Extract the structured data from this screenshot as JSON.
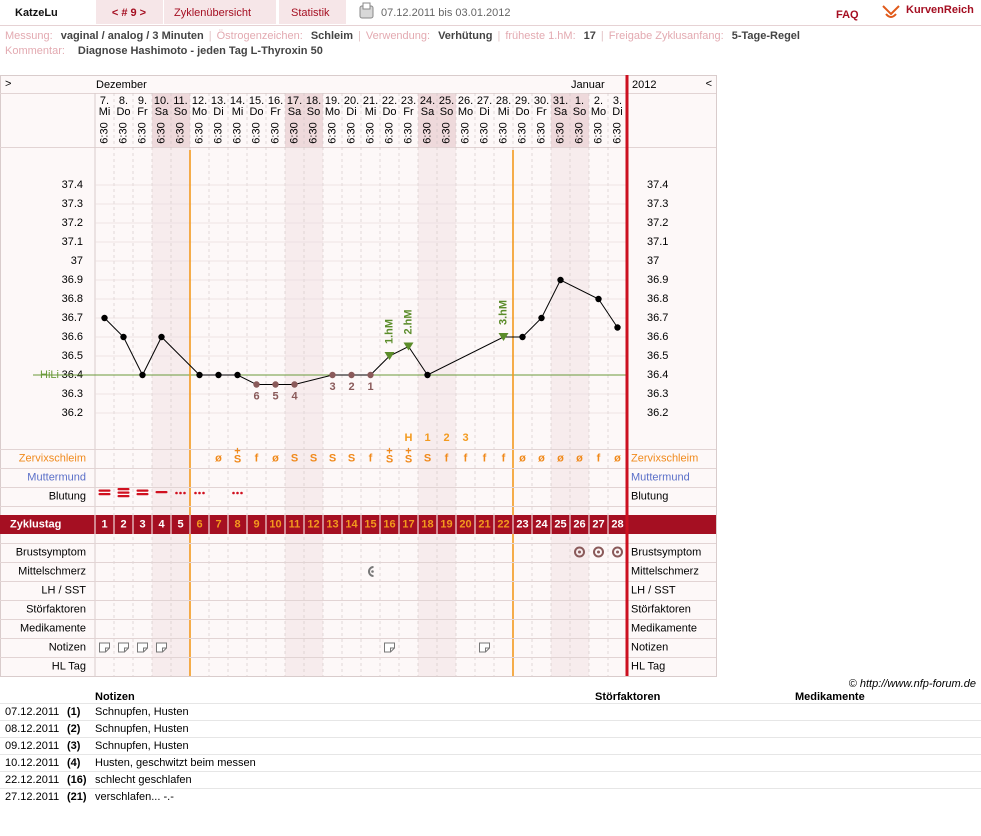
{
  "header": {
    "user": "KatzeLu",
    "cycle_nav": "< # 9 >",
    "tabs": [
      "Zyklenübersicht",
      "Statistik"
    ],
    "date_range": "07.12.2011 bis 03.01.2012",
    "faq": "FAQ",
    "logo": "KurvenReich"
  },
  "info": {
    "separator": "|",
    "fields": [
      {
        "label": "Messung:",
        "value": "vaginal / analog / 3 Minuten"
      },
      {
        "label": "Östrogenzeichen:",
        "value": "Schleim"
      },
      {
        "label": "Verwendung:",
        "value": "Verhütung"
      },
      {
        "label": "früheste 1.hM:",
        "value": "17"
      },
      {
        "label": "Freigabe Zyklusanfang:",
        "value": "5-Tage-Regel"
      }
    ],
    "comment": {
      "label": "Kommentar:",
      "value": "Diagnose Hashimoto - jeden Tag L-Thyroxin 50"
    }
  },
  "chart_data": {
    "type": "line",
    "nav_left": ">",
    "nav_right": "<",
    "months": [
      "Dezember",
      "Januar"
    ],
    "year": "2012",
    "dates": [
      "7.",
      "8.",
      "9.",
      "10.",
      "11.",
      "12.",
      "13.",
      "14.",
      "15.",
      "16.",
      "17.",
      "18.",
      "19.",
      "20.",
      "21.",
      "22.",
      "23.",
      "24.",
      "25.",
      "26.",
      "27.",
      "28.",
      "29.",
      "30.",
      "31.",
      "1.",
      "2.",
      "3."
    ],
    "weekdays": [
      "Mi",
      "Do",
      "Fr",
      "Sa",
      "So",
      "Mo",
      "Di",
      "Mi",
      "Do",
      "Fr",
      "Sa",
      "So",
      "Mo",
      "Di",
      "Mi",
      "Do",
      "Fr",
      "Sa",
      "So",
      "Mo",
      "Di",
      "Mi",
      "Do",
      "Fr",
      "Sa",
      "So",
      "Mo",
      "Di"
    ],
    "times": [
      "6:30",
      "6:30",
      "6:30",
      "6:30",
      "6:30",
      "6:30",
      "6:30",
      "6:30",
      "6:30",
      "6:30",
      "6:30",
      "6:30",
      "6:30",
      "6:30",
      "6:30",
      "6:30",
      "6:30",
      "6:30",
      "6:30",
      "6:30",
      "6:30",
      "6:30",
      "6:30",
      "6:30",
      "6:30",
      "6:30",
      "6:30",
      "6:30"
    ],
    "x": [
      1,
      2,
      3,
      4,
      6,
      7,
      8,
      9,
      10,
      11,
      13,
      14,
      15,
      16,
      17,
      18,
      22,
      23,
      24,
      25,
      27,
      28
    ],
    "values": [
      36.7,
      36.6,
      36.4,
      36.6,
      36.4,
      36.4,
      36.4,
      36.35,
      36.35,
      36.35,
      36.4,
      36.4,
      36.4,
      36.5,
      36.55,
      36.4,
      36.6,
      36.6,
      36.7,
      36.9,
      36.8,
      36.65
    ],
    "point_labels": [
      null,
      null,
      null,
      null,
      null,
      null,
      null,
      "6",
      "5",
      "4",
      "3",
      "2",
      "1",
      "1.hM",
      "2.hM",
      null,
      "3.hM",
      null,
      null,
      null,
      null,
      null
    ],
    "point_colors": [
      "#000000",
      "#000000",
      "#000000",
      "#000000",
      "#000000",
      "#000000",
      "#000000",
      "#8a5a5a",
      "#8a5a5a",
      "#8a5a5a",
      "#8a5a5a",
      "#8a5a5a",
      "#8a5a5a",
      "#5b8c2a",
      "#5b8c2a",
      "#000000",
      "#5b8c2a",
      "#000000",
      "#000000",
      "#000000",
      "#000000",
      "#000000"
    ],
    "point_markers": [
      "circle",
      "circle",
      "circle",
      "circle",
      "circle",
      "circle",
      "circle",
      "circle",
      "circle",
      "circle",
      "circle",
      "circle",
      "circle",
      "triangle",
      "triangle",
      "circle",
      "triangle",
      "circle",
      "circle",
      "circle",
      "circle",
      "circle"
    ],
    "xlim": [
      0.5,
      28.5
    ],
    "ylim": [
      36.0,
      37.6
    ],
    "yticks": [
      37.4,
      37.3,
      37.2,
      37.1,
      37,
      36.9,
      36.8,
      36.7,
      36.6,
      36.5,
      36.4,
      36.3,
      36.2
    ],
    "grid": true,
    "line_color": "#000000",
    "hili": {
      "label": "HiLi",
      "value": 36.4,
      "color": "#6a9a3a"
    },
    "peak": {
      "labels": [
        "H",
        "1",
        "2",
        "3"
      ],
      "start_day": 17
    },
    "cycle_marker_days": [
      5,
      22
    ],
    "rows_top": [
      {
        "label": "Zervixschleim",
        "color": "#f08a1c",
        "values": [
          null,
          null,
          null,
          null,
          null,
          null,
          "ø",
          {
            "text": "S",
            "mark": "+"
          },
          "f",
          "ø",
          "S",
          "S",
          "S",
          "S",
          "f",
          {
            "text": "S",
            "mark": "+"
          },
          {
            "text": "S",
            "mark": "+"
          },
          "S",
          "f",
          "f",
          "f",
          "f",
          "ø",
          "ø",
          "ø",
          "ø",
          "f",
          "ø"
        ]
      },
      {
        "label": "Muttermund",
        "color": "#5a6fc8"
      },
      {
        "label": "Blutung",
        "color": "#000000"
      }
    ],
    "cycle_label": "Zyklustag",
    "cycle_days": [
      1,
      2,
      3,
      4,
      5,
      6,
      7,
      8,
      9,
      10,
      11,
      12,
      13,
      14,
      15,
      16,
      17,
      18,
      19,
      20,
      21,
      22,
      23,
      24,
      25,
      26,
      27,
      28
    ],
    "rows_bottom": [
      "Brustsymptom",
      "Mittelschmerz",
      "LH / SST",
      "Störfaktoren",
      "Medikamente",
      "Notizen",
      "HL Tag"
    ]
  },
  "copyright": "© http://www.nfp-forum.de",
  "notes_table": {
    "headers": [
      "Notizen",
      "Störfaktoren",
      "Medikamente"
    ],
    "rows": [
      [
        "07.12.2011",
        "(1)",
        "Schnupfen, Husten"
      ],
      [
        "08.12.2011",
        "(2)",
        "Schnupfen, Husten"
      ],
      [
        "09.12.2011",
        "(3)",
        "Schnupfen, Husten"
      ],
      [
        "10.12.2011",
        "(4)",
        "Husten, geschwitzt beim messen"
      ],
      [
        "22.12.2011",
        "(16)",
        "schlecht geschlafen"
      ],
      [
        "27.12.2011",
        "(21)",
        "verschlafen... -.-"
      ]
    ]
  }
}
